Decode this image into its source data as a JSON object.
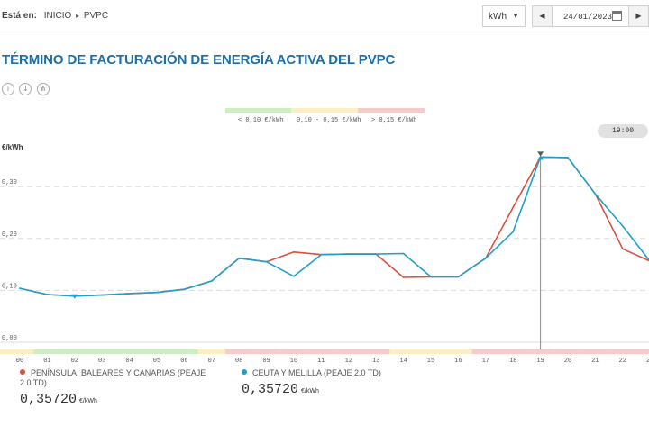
{
  "breadcrumb": {
    "label": "Está en:",
    "items": [
      "INICIO",
      "PVPC"
    ],
    "separator_icon": "triangle-right-icon"
  },
  "controls": {
    "unit_value": "kWh",
    "date_value": "24/01/2023"
  },
  "title": "TÉRMINO DE FACTURACIÓN DE ENERGÍA ACTIVA DEL PVPC",
  "toolbar": {
    "icons": [
      "info-icon",
      "download-icon",
      "share-icon"
    ]
  },
  "price_scale": [
    {
      "label": "< 0,10 €/kWh",
      "color": "#cdeec0"
    },
    {
      "label": "0,10 - 0,15 €/kWh",
      "color": "#fbeec4"
    },
    {
      "label": "> 0,15 €/kWh",
      "color": "#f6cccb"
    }
  ],
  "selected_time": "19:00",
  "colors": {
    "peninsula": "#d9503f",
    "ceuta": "#1fa0c9",
    "title": "#1b6fa8"
  },
  "chart_data": {
    "type": "line",
    "y_unit_label": "€/kWh",
    "x": [
      "00",
      "01",
      "02",
      "03",
      "04",
      "05",
      "06",
      "07",
      "08",
      "09",
      "10",
      "11",
      "12",
      "13",
      "14",
      "15",
      "16",
      "17",
      "18",
      "19",
      "20",
      "21",
      "22",
      "23"
    ],
    "y_ticks": [
      "0,00",
      "0,10",
      "0,20",
      "0,30"
    ],
    "ylim": [
      0,
      0.36
    ],
    "grid": true,
    "series": [
      {
        "name": "PENÍNSULA, BALEARES Y CANARIAS (PEAJE 2.0 TD)",
        "values": [
          0.104,
          0.092,
          0.089,
          0.091,
          0.094,
          0.096,
          0.102,
          0.118,
          0.162,
          0.155,
          0.174,
          0.169,
          0.17,
          0.17,
          0.125,
          0.126,
          0.126,
          0.162,
          0.26,
          0.357,
          0.356,
          0.286,
          0.18,
          0.156
        ]
      },
      {
        "name": "CEUTA Y MELILLA (PEAJE 2.0 TD)",
        "values": [
          0.104,
          0.092,
          0.089,
          0.091,
          0.094,
          0.096,
          0.102,
          0.118,
          0.162,
          0.155,
          0.127,
          0.169,
          0.17,
          0.17,
          0.171,
          0.126,
          0.126,
          0.162,
          0.213,
          0.357,
          0.356,
          0.286,
          0.224,
          0.156
        ]
      }
    ],
    "hour_price_band": [
      "amber",
      "green",
      "green",
      "green",
      "green",
      "green",
      "green",
      "amber",
      "red",
      "red",
      "red",
      "red",
      "red",
      "red",
      "amber",
      "amber",
      "amber",
      "red",
      "red",
      "red",
      "red",
      "red",
      "red",
      "red"
    ]
  },
  "footer": {
    "peninsula": {
      "name": "PENÍNSULA, BALEARES Y CANARIAS (PEAJE 2.0 TD)",
      "value": "0,35720",
      "unit": "€/kWh"
    },
    "ceuta": {
      "name": "CEUTA Y MELILLA (PEAJE 2.0 TD)",
      "value": "0,35720",
      "unit": "€/kWh"
    }
  }
}
